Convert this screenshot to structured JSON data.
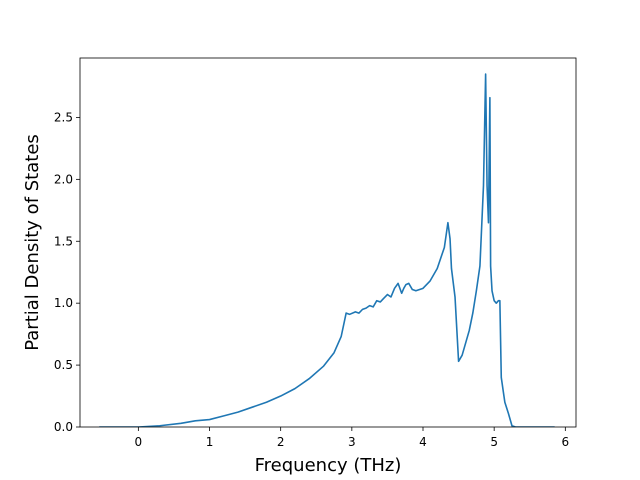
{
  "chart_data": {
    "type": "line",
    "xlabel": "Frequency (THz)",
    "ylabel": "Partial Density of States",
    "xlim": [
      -0.82,
      6.15
    ],
    "ylim": [
      0.0,
      2.98
    ],
    "xticks": [
      0,
      1,
      2,
      3,
      4,
      5,
      6
    ],
    "yticks": [
      0.0,
      0.5,
      1.0,
      1.5,
      2.0,
      2.5
    ],
    "xtick_labels": [
      "0",
      "1",
      "2",
      "3",
      "4",
      "5",
      "6"
    ],
    "ytick_labels": [
      "0.0",
      "0.5",
      "1.0",
      "1.5",
      "2.0",
      "2.5"
    ],
    "grid": false,
    "legend": "none",
    "colors": {
      "line": "#1f77b4"
    },
    "series": [
      {
        "x": [
          -0.55,
          0.0,
          0.3,
          0.6,
          0.8,
          1.0,
          1.2,
          1.4,
          1.6,
          1.8,
          2.0,
          2.2,
          2.4,
          2.6,
          2.75,
          2.85,
          2.92,
          2.97,
          3.05,
          3.1,
          3.15,
          3.2,
          3.25,
          3.3,
          3.35,
          3.4,
          3.45,
          3.5,
          3.55,
          3.6,
          3.65,
          3.7,
          3.73,
          3.76,
          3.8,
          3.85,
          3.9,
          4.0,
          4.1,
          4.2,
          4.3,
          4.35,
          4.38,
          4.4,
          4.45,
          4.5,
          4.55,
          4.6,
          4.65,
          4.7,
          4.75,
          4.8,
          4.85,
          4.88,
          4.9,
          4.92,
          4.94,
          4.95,
          4.97,
          5.0,
          5.03,
          5.06,
          5.08,
          5.1,
          5.13,
          5.15,
          5.2,
          5.25,
          5.3,
          5.35,
          5.5,
          5.85
        ],
        "y": [
          0.0,
          0.0,
          0.01,
          0.03,
          0.05,
          0.06,
          0.09,
          0.12,
          0.16,
          0.2,
          0.25,
          0.31,
          0.39,
          0.49,
          0.6,
          0.73,
          0.92,
          0.91,
          0.93,
          0.92,
          0.95,
          0.96,
          0.98,
          0.97,
          1.02,
          1.01,
          1.04,
          1.07,
          1.05,
          1.12,
          1.16,
          1.08,
          1.12,
          1.15,
          1.16,
          1.11,
          1.1,
          1.12,
          1.18,
          1.28,
          1.45,
          1.65,
          1.52,
          1.28,
          1.05,
          0.53,
          0.58,
          0.68,
          0.78,
          0.92,
          1.1,
          1.3,
          1.95,
          2.85,
          1.95,
          1.65,
          2.66,
          1.3,
          1.1,
          1.02,
          1.0,
          1.02,
          1.02,
          0.4,
          0.28,
          0.2,
          0.11,
          0.01,
          0.0,
          0.0,
          0.0,
          0.0
        ]
      }
    ]
  }
}
